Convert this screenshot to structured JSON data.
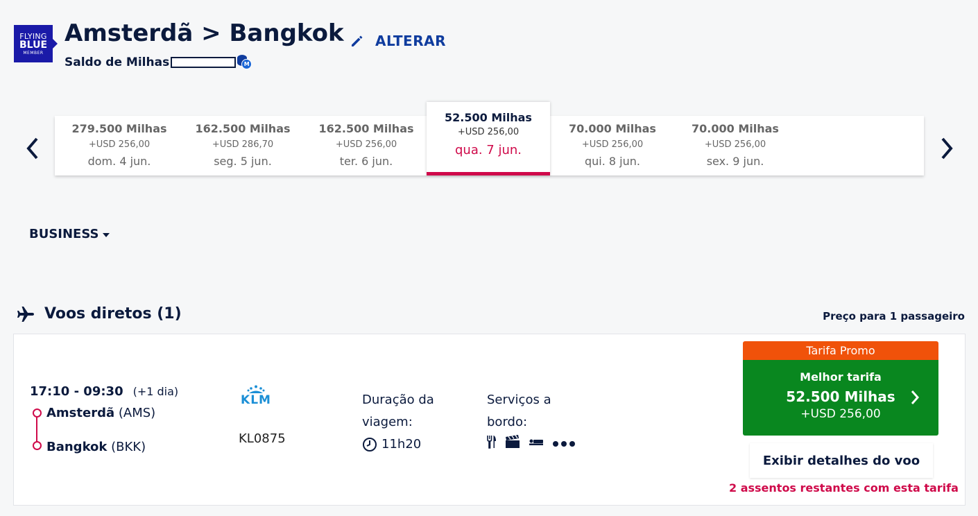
{
  "brand": {
    "logo_line1": "FLYING",
    "logo_line2": "BLUE",
    "logo_line3": "MEMBER"
  },
  "header": {
    "route": "Amsterdã > Bangkok",
    "edit_label": "ALTERAR",
    "balance_label": "Saldo de Milhas",
    "miles_badge": "M"
  },
  "dates": [
    {
      "miles": "279.500 Milhas",
      "usd": "+USD 256,00",
      "day": "dom. 4 jun.",
      "selected": false
    },
    {
      "miles": "162.500 Milhas",
      "usd": "+USD 286,70",
      "day": "seg. 5 jun.",
      "selected": false
    },
    {
      "miles": "162.500 Milhas",
      "usd": "+USD 256,00",
      "day": "ter. 6 jun.",
      "selected": false
    },
    {
      "miles": "52.500 Milhas",
      "usd": "+USD 256,00",
      "day": "qua. 7 jun.",
      "selected": true
    },
    {
      "miles": "70.000 Milhas",
      "usd": "+USD 256,00",
      "day": "qui. 8 jun.",
      "selected": false
    },
    {
      "miles": "70.000 Milhas",
      "usd": "+USD 256,00",
      "day": "sex. 9 jun.",
      "selected": false
    }
  ],
  "cabin": {
    "label": "BUSINESS"
  },
  "results": {
    "title": "Voos diretos (1)",
    "price_for_prefix": "Preço para ",
    "price_for_count": "1",
    "price_for_suffix": " passageiro"
  },
  "flight": {
    "times": "17:10 - 09:30",
    "next_day": "(+1 dia)",
    "origin_city": "Amsterdã",
    "origin_code": "(AMS)",
    "dest_city": "Bangkok",
    "dest_code": "(BKK)",
    "airline_logo_text": "KLM",
    "flight_number": "KL0875",
    "duration_label_1": "Duração da",
    "duration_label_2": "viagem:",
    "duration_value": "11h20",
    "services_label_1": "Serviços a",
    "services_label_2": "bordo:",
    "service_icons": [
      "meal-icon",
      "entertainment-icon",
      "flat-bed-icon",
      "more-icon"
    ],
    "fare_banner": "Tarifa Promo",
    "fare_title": "Melhor tarifa",
    "fare_miles": "52.500 Milhas",
    "fare_usd": "+USD 256,00",
    "details_button": "Exibir detalhes do voo",
    "seats_left": "2 assentos restantes com esta tarifa"
  },
  "colors": {
    "navy": "#0b1a3d",
    "link_blue": "#0f3c9e",
    "selected_red": "#cf0a4a",
    "promo_orange": "#f0520a",
    "fare_green": "#09871f",
    "klm_blue": "#1b8fd6"
  }
}
